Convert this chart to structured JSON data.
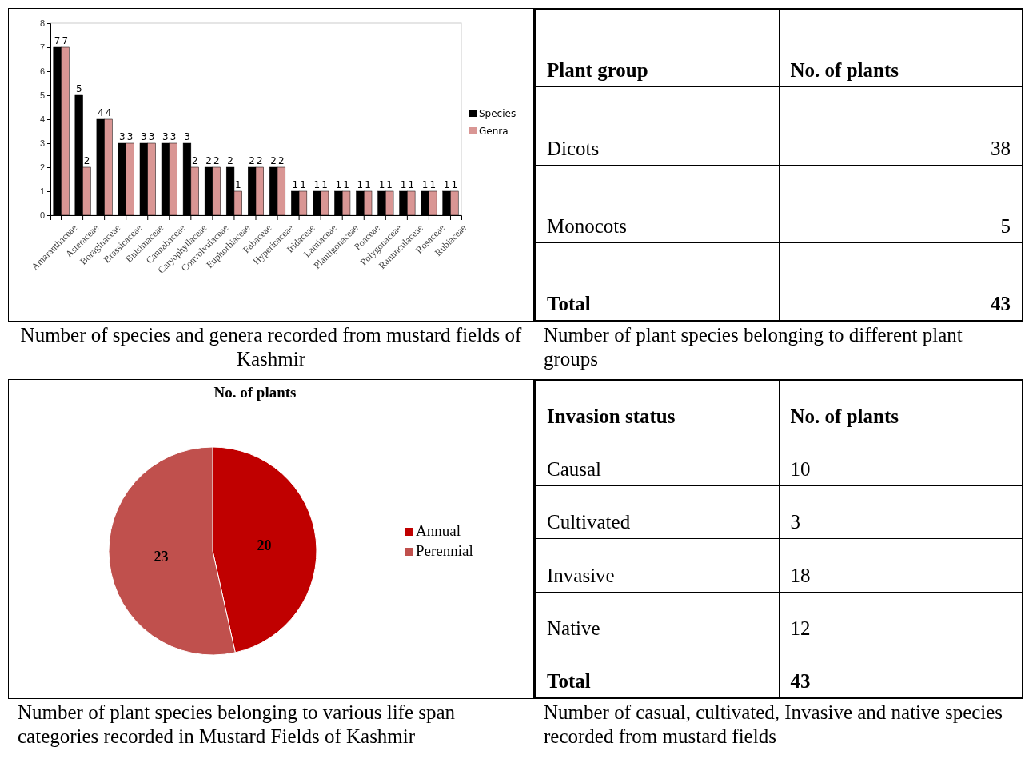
{
  "chart_data": [
    {
      "type": "bar",
      "categories": [
        "Amaranthaceae",
        "Asteraceae",
        "Boraginaceae",
        "Brassicaceae",
        "Bulsimaceae",
        "Cannabaceae",
        "Caryophyllaceae",
        "Convolvulaceae",
        "Euphorbiaceae",
        "Fabaceae",
        "Hypericaceae",
        "Iridaceae",
        "Lamiaceae",
        "Plantigonaceae",
        "Poaceae",
        "Polygonaceae",
        "Ranunculaceae",
        "Rosaceae",
        "Rubiaceae"
      ],
      "series": [
        {
          "name": "Species",
          "color": "#000000",
          "values": [
            7,
            5,
            4,
            3,
            3,
            3,
            3,
            2,
            2,
            2,
            2,
            1,
            1,
            1,
            1,
            1,
            1,
            1,
            1
          ]
        },
        {
          "name": "Genra",
          "color": "#d99694",
          "values": [
            7,
            2,
            4,
            3,
            3,
            3,
            2,
            2,
            1,
            2,
            2,
            1,
            1,
            1,
            1,
            1,
            1,
            1,
            1
          ]
        }
      ],
      "ylim": [
        0,
        8
      ],
      "yticks": [
        0,
        1,
        2,
        3,
        4,
        5,
        6,
        7,
        8
      ],
      "grid": false,
      "legend": "right",
      "data_labels": true,
      "annotations": [
        "Number of species and genera recorded from mustard fields of Kashmir"
      ]
    },
    {
      "type": "other",
      "xlabel": "Plant group",
      "ylabel": "No. of plants",
      "categories": [
        "Dicots",
        "Monocots",
        "Total"
      ],
      "values": [
        38,
        5,
        43
      ],
      "data_labels": true,
      "annotations": [
        "Number of plant species belonging to different plant groups"
      ]
    },
    {
      "type": "pie",
      "title": "No. of plants",
      "categories": [
        "Annual",
        "Perennial"
      ],
      "values": [
        20,
        23
      ],
      "colors": [
        "#c00000",
        "#c0504d"
      ],
      "legend": "right",
      "data_labels": true,
      "annotations": [
        "Number of plant species belonging to various life span categories recorded in Mustard  Fields of Kashmir"
      ]
    },
    {
      "type": "other",
      "xlabel": "Invasion status",
      "ylabel": "No. of plants",
      "categories": [
        "Causal",
        "Cultivated",
        "Invasive",
        "Native",
        "Total"
      ],
      "values": [
        10,
        3,
        18,
        12,
        43
      ],
      "data_labels": true,
      "annotations": [
        "Number of casual, cultivated, Invasive and native species recorded from mustard fields"
      ]
    }
  ]
}
